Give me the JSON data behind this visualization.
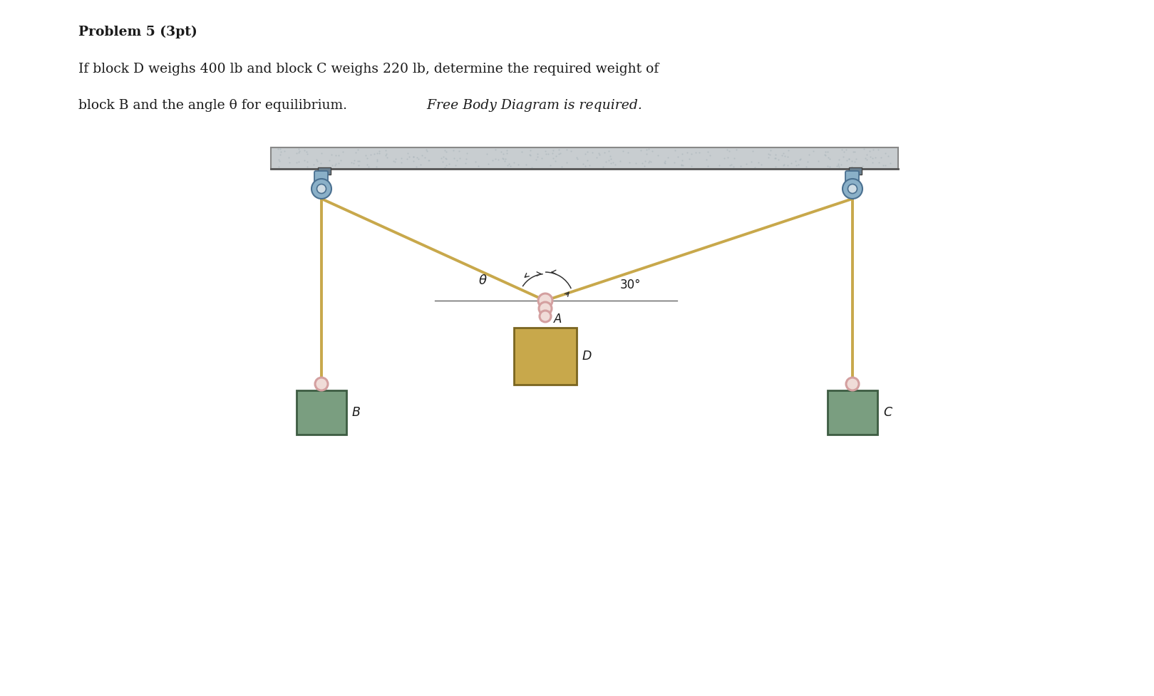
{
  "title_bold": "Problem 5 (3pt)",
  "body_line1": "If block D weighs 400 lb and block C weighs 220 lb, determine the required weight of",
  "body_line2_normal": "block B and the angle θ for equilibrium.",
  "body_line2_italic": " Free Body Diagram is required.",
  "bg_color": "#ffffff",
  "text_color": "#1a1a1a",
  "rope_color": "#c8a84b",
  "block_B_face": "#7a9e80",
  "block_B_edge": "#3d5c42",
  "block_C_face": "#7a9e80",
  "block_C_edge": "#3d5c42",
  "block_D_face": "#c8a84b",
  "block_D_edge": "#7a6520",
  "ceiling_face": "#c8cdd0",
  "ceiling_edge": "#888888",
  "pulley_face": "#8ab0c8",
  "pulley_edge": "#4a7090",
  "ring_color": "#d4a0a0",
  "angle_label_theta": "θ",
  "angle_label_30": "30°",
  "label_A": "A",
  "label_B": "B",
  "label_C": "C",
  "label_D": "D",
  "fig_width": 16.19,
  "fig_height": 9.77,
  "dpi": 100
}
